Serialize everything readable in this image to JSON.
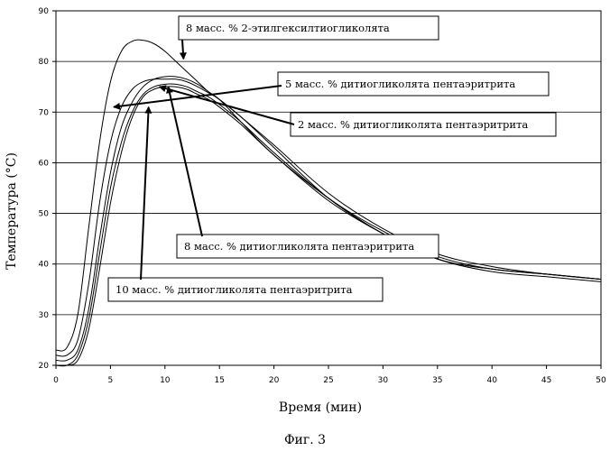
{
  "chart_data": {
    "type": "line",
    "xlabel": "Время (мин)",
    "ylabel": "Температура (°C)",
    "xlim": [
      0,
      50
    ],
    "ylim": [
      20,
      90
    ],
    "xticks": [
      "0",
      "5",
      "10",
      "15",
      "20",
      "25",
      "30",
      "35",
      "40",
      "45",
      "50"
    ],
    "yticks": [
      "20",
      "30",
      "40",
      "50",
      "60",
      "70",
      "80",
      "90"
    ],
    "grid": "horizontal",
    "line_color": "#000000",
    "series": [
      {
        "name": "8 масс. % 2-этилгексилтиогликолята",
        "x": [
          0,
          1,
          2,
          3,
          4,
          5,
          6,
          7,
          8,
          9,
          10,
          11,
          12,
          13,
          14,
          15,
          17,
          20,
          25,
          30,
          35,
          40,
          45,
          50
        ],
        "y": [
          23,
          23.5,
          30,
          47,
          64,
          76,
          82,
          84,
          84.2,
          83.5,
          82,
          80,
          78,
          76,
          74,
          72.5,
          68,
          61.5,
          53,
          46,
          41,
          39,
          38,
          37
        ]
      },
      {
        "name": "5 масс. % дитиогликолята пентаэритрита",
        "x": [
          0,
          1,
          2,
          3,
          4,
          5,
          6,
          7,
          8,
          9,
          10,
          11,
          12,
          13,
          14,
          15,
          17,
          20,
          25,
          30,
          35,
          40,
          45,
          50
        ],
        "y": [
          22,
          22,
          25,
          36,
          52,
          64,
          71,
          74.5,
          76,
          76.5,
          76.5,
          76.5,
          76,
          75,
          73.8,
          72.5,
          69,
          63.5,
          54,
          47,
          42,
          39.5,
          38,
          37
        ]
      },
      {
        "name": "2 масс. % дитиогликолята пентаэритрита",
        "x": [
          0,
          1,
          2,
          3,
          4,
          5,
          6,
          7,
          8,
          9,
          10,
          11,
          12,
          13,
          14,
          15,
          17,
          20,
          25,
          30,
          35,
          40,
          45,
          50
        ],
        "y": [
          21,
          21,
          23,
          31,
          45,
          58,
          67,
          72,
          75,
          76.5,
          77,
          77,
          76.5,
          75.5,
          74,
          72.5,
          69,
          63,
          53,
          46,
          41,
          39,
          38,
          37
        ]
      },
      {
        "name": "8 масс. % дитиогликолята пентаэритрита",
        "x": [
          0,
          1,
          2,
          3,
          4,
          5,
          6,
          7,
          8,
          9,
          10,
          11,
          12,
          13,
          14,
          15,
          17,
          20,
          25,
          30,
          35,
          40,
          45,
          50
        ],
        "y": [
          20,
          20,
          22,
          29,
          42,
          55,
          64,
          70,
          73.5,
          75,
          75.5,
          75.5,
          75,
          74,
          73,
          71.5,
          68,
          62,
          53,
          46.5,
          41.5,
          39,
          38,
          37
        ]
      },
      {
        "name": "10 масс. % дитиогликолята пентаэритрита",
        "x": [
          0,
          1,
          2,
          3,
          4,
          5,
          6,
          7,
          8,
          9,
          10,
          11,
          12,
          13,
          14,
          15,
          17,
          20,
          25,
          30,
          35,
          40,
          45,
          50
        ],
        "y": [
          20,
          20,
          21,
          27,
          39,
          52,
          62,
          69,
          73,
          74.5,
          75,
          75,
          74.5,
          73.5,
          72.5,
          71,
          67.5,
          61.5,
          52.5,
          46,
          41,
          38.5,
          37.5,
          36.5
        ]
      }
    ],
    "annotations": [
      {
        "text": "8 масс. % 2-этилгексилтиогликолята",
        "target": [
          11.7,
          80.5
        ],
        "box": "top"
      },
      {
        "text": "5 масс. % дитиогликолята пентаэритрита",
        "target": [
          5.3,
          71
        ],
        "box": "right-upper"
      },
      {
        "text": "2 масс. % дитиогликолята пентаэритрита",
        "target": [
          9.5,
          75
        ],
        "box": "right-middle"
      },
      {
        "text": "8 масс. % дитиогликолята пентаэритрита",
        "target": [
          10.3,
          75
        ],
        "box": "center-lower"
      },
      {
        "text": "10 масс. % дитиогликолята пентаэритрита",
        "target": [
          8.5,
          71
        ],
        "box": "bottom-left"
      }
    ],
    "caption": "Фиг. 3"
  }
}
